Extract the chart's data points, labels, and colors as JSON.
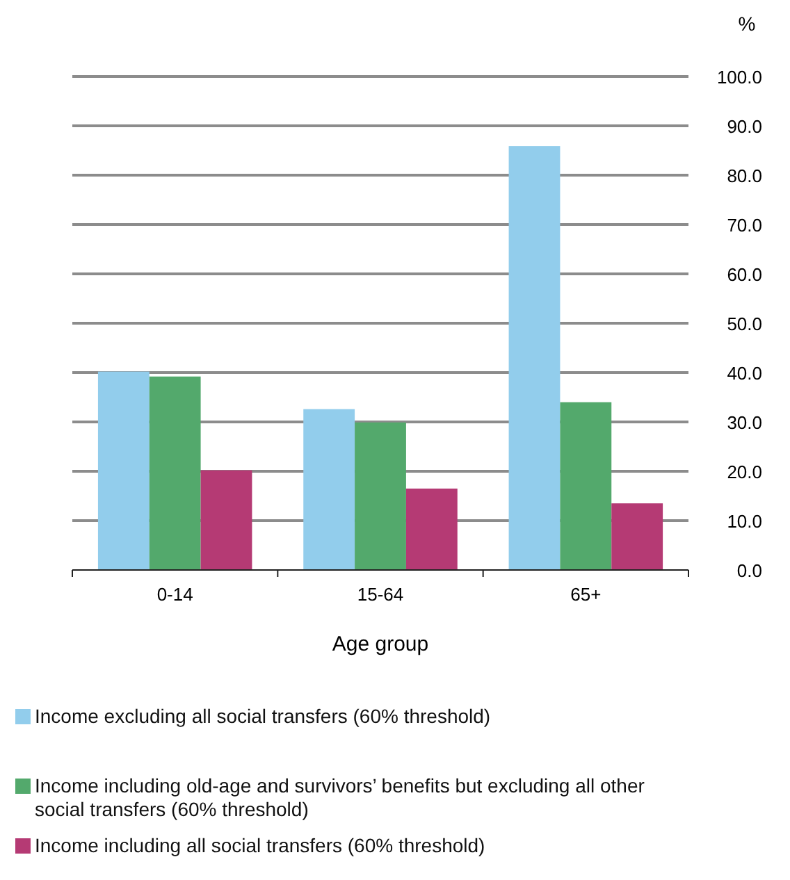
{
  "chart_data": {
    "type": "bar",
    "xlabel": "Age group",
    "ylabel": "%",
    "categories": [
      "0-14",
      "15-64",
      "65+"
    ],
    "series": [
      {
        "name": "Income excluding all social transfers (60% threshold)",
        "color": "#92cdec",
        "values": [
          40.2,
          32.6,
          85.9
        ]
      },
      {
        "name": "Income including old-age and survivors’ benefits but excluding all other social transfers  (60% threshold)",
        "color": "#53a96c",
        "values": [
          39.2,
          29.9,
          34.0
        ]
      },
      {
        "name": "Income including all social transfers (60% threshold)",
        "color": "#b53a74",
        "values": [
          20.2,
          16.5,
          13.5
        ]
      }
    ],
    "ylim": [
      0,
      100
    ],
    "yticks": [
      {
        "value": 0,
        "label": "0.0"
      },
      {
        "value": 10,
        "label": "10.0"
      },
      {
        "value": 20,
        "label": "20.0"
      },
      {
        "value": 30,
        "label": "30.0"
      },
      {
        "value": 40,
        "label": "40.0"
      },
      {
        "value": 50,
        "label": "50.0"
      },
      {
        "value": 60,
        "label": "60.0"
      },
      {
        "value": 70,
        "label": "70.0"
      },
      {
        "value": 80,
        "label": "80.0"
      },
      {
        "value": 90,
        "label": "90.0"
      },
      {
        "value": 100,
        "label": "100.0"
      }
    ],
    "grid": "y",
    "legend": "bottom"
  }
}
